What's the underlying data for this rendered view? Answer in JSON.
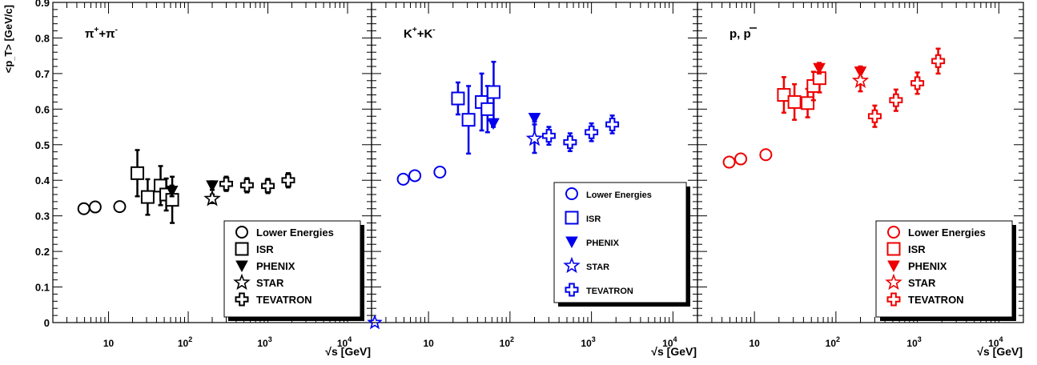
{
  "y_axis_title": "<p_T> [GeV/c]",
  "y_axis": {
    "min": 0,
    "max": 0.9,
    "tick_labels": [
      {
        "v": 0,
        "label": "0"
      },
      {
        "v": 0.1,
        "label": "0.1"
      },
      {
        "v": 0.2,
        "label": "0.2"
      },
      {
        "v": 0.3,
        "label": "0.3"
      },
      {
        "v": 0.4,
        "label": "0.4"
      },
      {
        "v": 0.5,
        "label": "0.5"
      },
      {
        "v": 0.6,
        "label": "0.6"
      },
      {
        "v": 0.7,
        "label": "0.7"
      },
      {
        "v": 0.8,
        "label": "0.8"
      },
      {
        "v": 0.9,
        "label": "0.9"
      }
    ]
  },
  "x_axis": {
    "title": "√s [GeV]",
    "scale": "log",
    "range": [
      2,
      20000
    ],
    "tick_labels": [
      {
        "v": 10,
        "label": "10"
      },
      {
        "v": 100,
        "label": "10",
        "exp": "2"
      },
      {
        "v": 1000,
        "label": "10",
        "exp": "3"
      },
      {
        "v": 10000,
        "label": "10",
        "exp": "4"
      }
    ]
  },
  "legend_labels": [
    "Lower Energies",
    "ISR",
    "PHENIX",
    "STAR",
    "TEVATRON"
  ],
  "chart_data": [
    {
      "type": "scatter",
      "panel_label": {
        "base": "π",
        "sup1": "+",
        "mid": "+π",
        "sup2": "-"
      },
      "color": "#000000",
      "legend_position": "bottom-right",
      "series": [
        {
          "name": "Lower Energies",
          "marker": "circle",
          "points": [
            {
              "x": 4.9,
              "y": 0.32
            },
            {
              "x": 6.8,
              "y": 0.325
            },
            {
              "x": 13.8,
              "y": 0.326
            }
          ]
        },
        {
          "name": "ISR",
          "marker": "square",
          "points": [
            {
              "x": 23,
              "y": 0.42,
              "err": 0.065
            },
            {
              "x": 31,
              "y": 0.353,
              "err": 0.05
            },
            {
              "x": 45,
              "y": 0.385,
              "err": 0.055
            },
            {
              "x": 53,
              "y": 0.36,
              "err": 0.045
            },
            {
              "x": 63,
              "y": 0.345,
              "err": 0.065
            }
          ]
        },
        {
          "name": "PHENIX",
          "marker": "triangle",
          "points": [
            {
              "x": 62.4,
              "y": 0.37,
              "err": 0.015
            },
            {
              "x": 200,
              "y": 0.385,
              "err": 0.012
            }
          ]
        },
        {
          "name": "STAR",
          "marker": "star",
          "points": [
            {
              "x": 200,
              "y": 0.348,
              "err": 0.012
            }
          ]
        },
        {
          "name": "TEVATRON",
          "marker": "cross",
          "points": [
            {
              "x": 300,
              "y": 0.39,
              "err": 0.02
            },
            {
              "x": 546,
              "y": 0.386,
              "err": 0.02
            },
            {
              "x": 1000,
              "y": 0.384,
              "err": 0.02
            },
            {
              "x": 1800,
              "y": 0.4,
              "err": 0.02
            }
          ]
        }
      ]
    },
    {
      "type": "scatter",
      "panel_label": {
        "base": "K",
        "sup1": "+",
        "mid": "+K",
        "sup2": "-"
      },
      "color": "#0000ee",
      "legend_position": "bottom-right",
      "series": [
        {
          "name": "Lower Energies",
          "marker": "circle",
          "points": [
            {
              "x": 4.9,
              "y": 0.403
            },
            {
              "x": 6.8,
              "y": 0.413
            },
            {
              "x": 13.8,
              "y": 0.423
            }
          ]
        },
        {
          "name": "ISR",
          "marker": "square",
          "points": [
            {
              "x": 23,
              "y": 0.63,
              "err": 0.045
            },
            {
              "x": 31,
              "y": 0.57,
              "err": 0.095
            },
            {
              "x": 45,
              "y": 0.62,
              "err": 0.08
            },
            {
              "x": 53,
              "y": 0.6,
              "err": 0.065
            },
            {
              "x": 63,
              "y": 0.648,
              "err": 0.085
            }
          ]
        },
        {
          "name": "PHENIX",
          "marker": "triangle",
          "points": [
            {
              "x": 62.4,
              "y": 0.56,
              "err": 0.01
            },
            {
              "x": 200,
              "y": 0.575,
              "err": 0.01
            }
          ]
        },
        {
          "name": "STAR",
          "marker": "star",
          "points": [
            {
              "x": 200,
              "y": 0.517,
              "err": 0.04
            }
          ]
        },
        {
          "name": "TEVATRON",
          "marker": "cross",
          "points": [
            {
              "x": 300,
              "y": 0.525,
              "err": 0.025
            },
            {
              "x": 546,
              "y": 0.507,
              "err": 0.025
            },
            {
              "x": 1000,
              "y": 0.535,
              "err": 0.025
            },
            {
              "x": 1800,
              "y": 0.557,
              "err": 0.025
            }
          ]
        }
      ]
    },
    {
      "type": "scatter",
      "panel_label": {
        "base": "p, ",
        "pbar": "p"
      },
      "color": "#ee0000",
      "legend_position": "bottom-right",
      "series": [
        {
          "name": "Lower Energies",
          "marker": "circle",
          "points": [
            {
              "x": 4.9,
              "y": 0.451
            },
            {
              "x": 6.8,
              "y": 0.46
            },
            {
              "x": 13.8,
              "y": 0.472
            }
          ]
        },
        {
          "name": "ISR",
          "marker": "square",
          "points": [
            {
              "x": 23,
              "y": 0.64,
              "err": 0.05
            },
            {
              "x": 31,
              "y": 0.62,
              "err": 0.05
            },
            {
              "x": 45,
              "y": 0.617,
              "err": 0.04
            },
            {
              "x": 53,
              "y": 0.665,
              "err": 0.04
            },
            {
              "x": 63,
              "y": 0.687,
              "err": 0.04
            }
          ]
        },
        {
          "name": "PHENIX",
          "marker": "triangle",
          "points": [
            {
              "x": 62.4,
              "y": 0.715,
              "err": 0.015
            },
            {
              "x": 200,
              "y": 0.705,
              "err": 0.015
            }
          ]
        },
        {
          "name": "STAR",
          "marker": "star",
          "points": [
            {
              "x": 200,
              "y": 0.68,
              "err": 0.03
            }
          ]
        },
        {
          "name": "TEVATRON",
          "marker": "cross",
          "points": [
            {
              "x": 300,
              "y": 0.58,
              "err": 0.03
            },
            {
              "x": 546,
              "y": 0.625,
              "err": 0.03
            },
            {
              "x": 1000,
              "y": 0.673,
              "err": 0.03
            },
            {
              "x": 1800,
              "y": 0.735,
              "err": 0.035
            }
          ]
        }
      ]
    }
  ]
}
